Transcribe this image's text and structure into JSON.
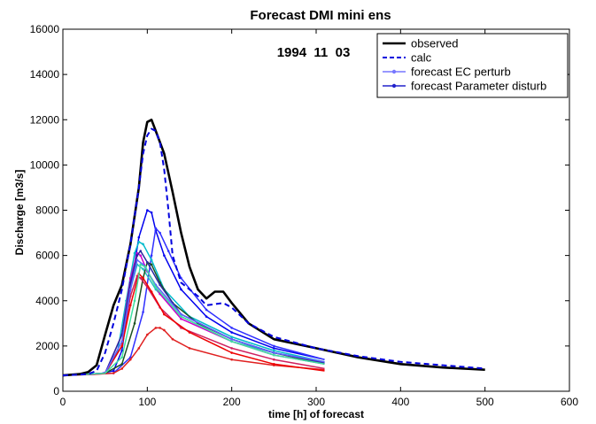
{
  "chart_data": {
    "type": "line",
    "title": "Forecast DMI mini ens",
    "annotation": "1994  11  03",
    "xlabel": "time [h] of forecast",
    "ylabel": "Discharge [m3/s]",
    "xlim": [
      0,
      600
    ],
    "ylim": [
      0,
      16000
    ],
    "xticks": [
      0,
      100,
      200,
      300,
      400,
      500,
      600
    ],
    "yticks": [
      0,
      2000,
      4000,
      6000,
      8000,
      10000,
      12000,
      14000,
      16000
    ],
    "legend_position": "top-right",
    "legend": [
      {
        "label": "observed",
        "color": "#000000",
        "style": "solid-thick"
      },
      {
        "label": "calc",
        "color": "#0000dd",
        "style": "dashed"
      },
      {
        "label": "forecast EC perturb",
        "color": "#7777ff",
        "style": "solid-marker"
      },
      {
        "label": "forecast Parameter disturb",
        "color": "#2222cc",
        "style": "solid-marker"
      }
    ],
    "series": [
      {
        "name": "observed",
        "color": "#000000",
        "width": 2.6,
        "dash": "",
        "points": [
          [
            0,
            700
          ],
          [
            20,
            760
          ],
          [
            30,
            850
          ],
          [
            40,
            1150
          ],
          [
            50,
            2500
          ],
          [
            60,
            3800
          ],
          [
            70,
            4700
          ],
          [
            80,
            6500
          ],
          [
            90,
            9000
          ],
          [
            95,
            11000
          ],
          [
            100,
            11900
          ],
          [
            105,
            12000
          ],
          [
            110,
            11500
          ],
          [
            120,
            10500
          ],
          [
            130,
            8800
          ],
          [
            140,
            7000
          ],
          [
            150,
            5500
          ],
          [
            160,
            4500
          ],
          [
            170,
            4100
          ],
          [
            180,
            4400
          ],
          [
            190,
            4400
          ],
          [
            200,
            3900
          ],
          [
            220,
            3000
          ],
          [
            250,
            2300
          ],
          [
            300,
            1900
          ],
          [
            350,
            1500
          ],
          [
            400,
            1200
          ],
          [
            450,
            1050
          ],
          [
            500,
            950
          ]
        ]
      },
      {
        "name": "calc",
        "color": "#0000dd",
        "width": 2,
        "dash": "6,4",
        "points": [
          [
            0,
            700
          ],
          [
            30,
            760
          ],
          [
            40,
            900
          ],
          [
            50,
            1700
          ],
          [
            60,
            3000
          ],
          [
            70,
            4500
          ],
          [
            80,
            6500
          ],
          [
            90,
            9000
          ],
          [
            95,
            10500
          ],
          [
            100,
            11300
          ],
          [
            105,
            11600
          ],
          [
            110,
            11500
          ],
          [
            115,
            11000
          ],
          [
            120,
            9800
          ],
          [
            125,
            8000
          ],
          [
            130,
            6000
          ],
          [
            140,
            4800
          ],
          [
            160,
            4200
          ],
          [
            170,
            3800
          ],
          [
            190,
            3900
          ],
          [
            200,
            3700
          ],
          [
            220,
            3000
          ],
          [
            250,
            2400
          ],
          [
            300,
            1900
          ],
          [
            350,
            1550
          ],
          [
            400,
            1300
          ],
          [
            450,
            1150
          ],
          [
            500,
            1000
          ]
        ]
      }
    ],
    "ensemble": [
      {
        "color": "#0000ee",
        "points": [
          [
            0,
            700
          ],
          [
            40,
            750
          ],
          [
            60,
            900
          ],
          [
            70,
            1800
          ],
          [
            80,
            4500
          ],
          [
            90,
            6800
          ],
          [
            100,
            8000
          ],
          [
            105,
            7900
          ],
          [
            110,
            7100
          ],
          [
            120,
            6000
          ],
          [
            140,
            4500
          ],
          [
            170,
            3300
          ],
          [
            200,
            2600
          ],
          [
            250,
            1900
          ],
          [
            310,
            1400
          ]
        ]
      },
      {
        "color": "#3030ff",
        "points": [
          [
            0,
            700
          ],
          [
            60,
            800
          ],
          [
            80,
            1500
          ],
          [
            95,
            3500
          ],
          [
            105,
            6000
          ],
          [
            110,
            7200
          ],
          [
            115,
            7000
          ],
          [
            125,
            6200
          ],
          [
            140,
            5000
          ],
          [
            170,
            3600
          ],
          [
            200,
            2800
          ],
          [
            250,
            2000
          ],
          [
            310,
            1400
          ]
        ]
      },
      {
        "color": "#00bbcc",
        "points": [
          [
            0,
            700
          ],
          [
            50,
            800
          ],
          [
            65,
            1800
          ],
          [
            75,
            4000
          ],
          [
            85,
            6100
          ],
          [
            90,
            6600
          ],
          [
            95,
            6500
          ],
          [
            105,
            5800
          ],
          [
            120,
            4500
          ],
          [
            150,
            3300
          ],
          [
            200,
            2400
          ],
          [
            250,
            1800
          ],
          [
            310,
            1300
          ]
        ]
      },
      {
        "color": "#20c0c0",
        "points": [
          [
            0,
            700
          ],
          [
            50,
            780
          ],
          [
            70,
            2000
          ],
          [
            80,
            4500
          ],
          [
            88,
            5600
          ],
          [
            95,
            5400
          ],
          [
            110,
            4500
          ],
          [
            140,
            3300
          ],
          [
            200,
            2200
          ],
          [
            250,
            1700
          ],
          [
            310,
            1300
          ]
        ]
      },
      {
        "color": "#cc00cc",
        "points": [
          [
            0,
            700
          ],
          [
            50,
            800
          ],
          [
            70,
            2500
          ],
          [
            80,
            5000
          ],
          [
            88,
            6100
          ],
          [
            92,
            6000
          ],
          [
            100,
            5300
          ],
          [
            115,
            4300
          ],
          [
            140,
            3200
          ],
          [
            200,
            2200
          ],
          [
            250,
            1600
          ],
          [
            310,
            1200
          ]
        ]
      },
      {
        "color": "#1a5020",
        "points": [
          [
            0,
            700
          ],
          [
            50,
            800
          ],
          [
            70,
            1200
          ],
          [
            85,
            3000
          ],
          [
            95,
            5000
          ],
          [
            100,
            5700
          ],
          [
            105,
            5600
          ],
          [
            115,
            4800
          ],
          [
            130,
            3900
          ],
          [
            160,
            3000
          ],
          [
            200,
            2300
          ],
          [
            250,
            1700
          ],
          [
            310,
            1200
          ]
        ]
      },
      {
        "color": "#d02060",
        "points": [
          [
            0,
            700
          ],
          [
            50,
            800
          ],
          [
            70,
            2000
          ],
          [
            80,
            4200
          ],
          [
            88,
            5100
          ],
          [
            92,
            5000
          ],
          [
            100,
            4600
          ],
          [
            115,
            3700
          ],
          [
            140,
            2800
          ],
          [
            200,
            1900
          ],
          [
            250,
            1400
          ],
          [
            310,
            1000
          ]
        ]
      },
      {
        "color": "#e02020",
        "points": [
          [
            0,
            700
          ],
          [
            40,
            750
          ],
          [
            60,
            800
          ],
          [
            70,
            1000
          ],
          [
            80,
            1400
          ],
          [
            90,
            1900
          ],
          [
            100,
            2500
          ],
          [
            110,
            2800
          ],
          [
            115,
            2800
          ],
          [
            120,
            2700
          ],
          [
            130,
            2300
          ],
          [
            150,
            1900
          ],
          [
            200,
            1400
          ],
          [
            250,
            1150
          ],
          [
            310,
            950
          ]
        ]
      },
      {
        "color": "#ee0000",
        "points": [
          [
            0,
            700
          ],
          [
            50,
            800
          ],
          [
            70,
            2000
          ],
          [
            80,
            3800
          ],
          [
            90,
            5200
          ],
          [
            95,
            5000
          ],
          [
            105,
            4400
          ],
          [
            120,
            3400
          ],
          [
            150,
            2600
          ],
          [
            200,
            1700
          ],
          [
            250,
            1200
          ],
          [
            310,
            900
          ]
        ]
      },
      {
        "color": "#2a2aa0",
        "points": [
          [
            0,
            700
          ],
          [
            50,
            800
          ],
          [
            70,
            2500
          ],
          [
            80,
            4800
          ],
          [
            88,
            6000
          ],
          [
            92,
            6200
          ],
          [
            100,
            5700
          ],
          [
            115,
            4700
          ],
          [
            140,
            3400
          ],
          [
            200,
            2300
          ],
          [
            250,
            1700
          ],
          [
            310,
            1250
          ]
        ]
      },
      {
        "color": "#6060ff",
        "points": [
          [
            0,
            700
          ],
          [
            50,
            800
          ],
          [
            70,
            2200
          ],
          [
            80,
            4500
          ],
          [
            88,
            5800
          ],
          [
            95,
            5600
          ],
          [
            110,
            4700
          ],
          [
            140,
            3400
          ],
          [
            200,
            2300
          ],
          [
            250,
            1700
          ],
          [
            310,
            1300
          ]
        ]
      },
      {
        "color": "#40e0a0",
        "points": [
          [
            0,
            700
          ],
          [
            50,
            800
          ],
          [
            70,
            1500
          ],
          [
            85,
            4000
          ],
          [
            92,
            5600
          ],
          [
            98,
            5500
          ],
          [
            110,
            4600
          ],
          [
            140,
            3300
          ],
          [
            200,
            2200
          ],
          [
            250,
            1600
          ],
          [
            310,
            1200
          ]
        ]
      }
    ]
  }
}
